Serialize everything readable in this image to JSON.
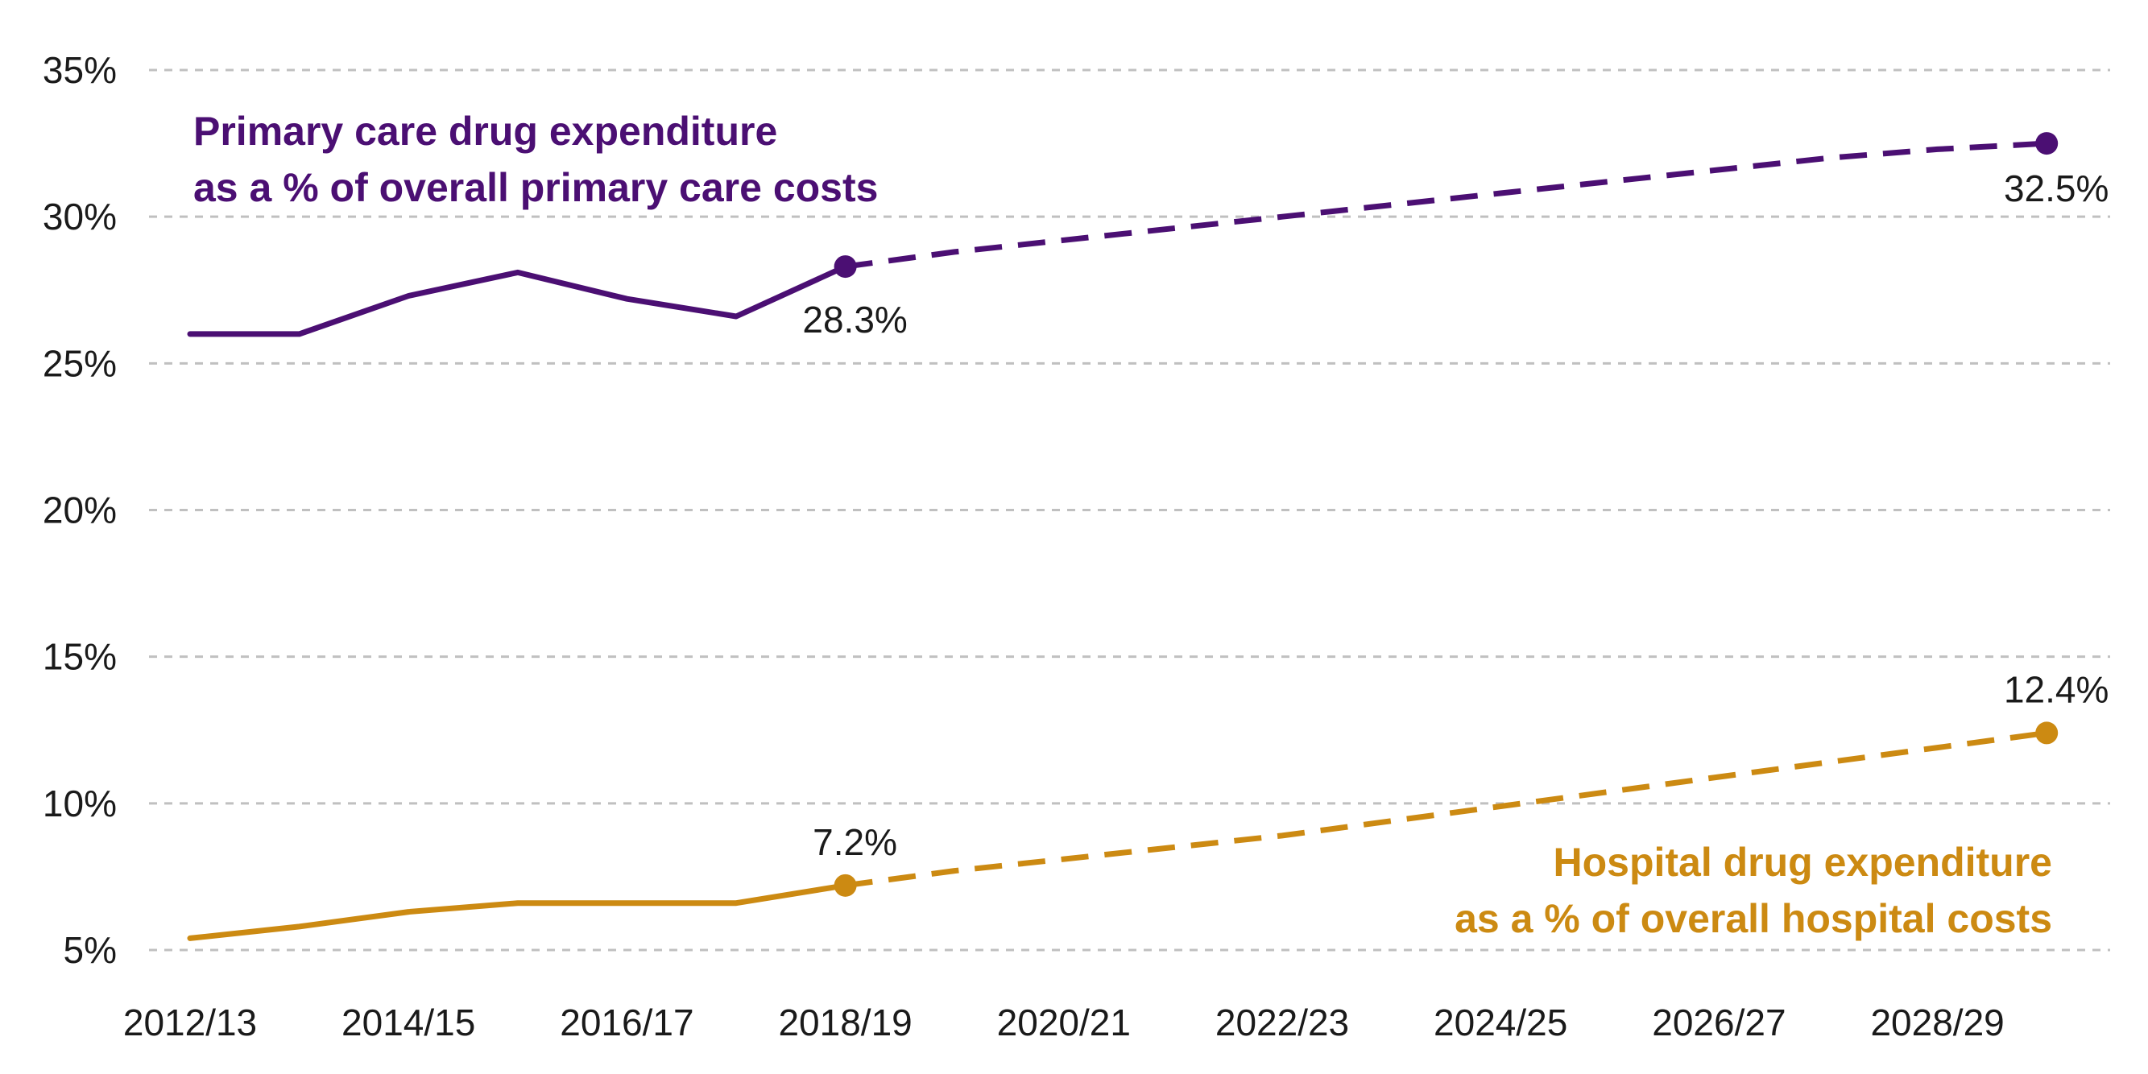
{
  "chart_data": {
    "type": "line",
    "categories": [
      "2012/13",
      "2013/14",
      "2014/15",
      "2015/16",
      "2016/17",
      "2017/18",
      "2018/19",
      "2019/20",
      "2020/21",
      "2021/22",
      "2022/23",
      "2023/24",
      "2024/25",
      "2025/26",
      "2026/27",
      "2027/28",
      "2028/29",
      "2029/30"
    ],
    "x_tick_labels": [
      "2012/13",
      "2014/15",
      "2016/17",
      "2018/19",
      "2020/21",
      "2022/23",
      "2024/25",
      "2026/27",
      "2028/29"
    ],
    "y_ticks": [
      "5%",
      "10%",
      "15%",
      "20%",
      "25%",
      "30%",
      "35%"
    ],
    "ylim": [
      5,
      35
    ],
    "grid": true,
    "title": "",
    "xlabel": "",
    "ylabel": "",
    "series": [
      {
        "key": "primary",
        "name_lines": [
          "Primary care drug expenditure",
          "as a % of overall primary care costs"
        ],
        "color": "#4b0f73",
        "actual": [
          [
            0,
            26.0
          ],
          [
            1,
            26.0
          ],
          [
            2,
            27.3
          ],
          [
            3,
            28.1
          ],
          [
            4,
            27.2
          ],
          [
            5,
            26.6
          ],
          [
            6,
            28.3
          ]
        ],
        "projected": [
          [
            6,
            28.3
          ],
          [
            7,
            28.8
          ],
          [
            8,
            29.2
          ],
          [
            9,
            29.6
          ],
          [
            10,
            30.0
          ],
          [
            11,
            30.4
          ],
          [
            12,
            30.8
          ],
          [
            13,
            31.2
          ],
          [
            14,
            31.6
          ],
          [
            15,
            32.0
          ],
          [
            16,
            32.3
          ],
          [
            17,
            32.5
          ]
        ],
        "labeled_points": [
          {
            "index": 6,
            "value": 28.3,
            "text": "28.3%"
          },
          {
            "index": 17,
            "value": 32.5,
            "text": "32.5%"
          }
        ]
      },
      {
        "key": "hospital",
        "name_lines": [
          "Hospital drug expenditure",
          "as a % of overall hospital costs"
        ],
        "color": "#cc8a12",
        "actual": [
          [
            0,
            5.4
          ],
          [
            1,
            5.8
          ],
          [
            2,
            6.3
          ],
          [
            3,
            6.6
          ],
          [
            4,
            6.6
          ],
          [
            5,
            6.6
          ],
          [
            6,
            7.2
          ]
        ],
        "projected": [
          [
            6,
            7.2
          ],
          [
            7,
            7.7
          ],
          [
            8,
            8.1
          ],
          [
            9,
            8.5
          ],
          [
            10,
            8.9
          ],
          [
            11,
            9.4
          ],
          [
            12,
            9.9
          ],
          [
            13,
            10.4
          ],
          [
            14,
            10.9
          ],
          [
            15,
            11.4
          ],
          [
            16,
            11.9
          ],
          [
            17,
            12.4
          ]
        ],
        "labeled_points": [
          {
            "index": 6,
            "value": 7.2,
            "text": "7.2%"
          },
          {
            "index": 17,
            "value": 12.4,
            "text": "12.4%"
          }
        ]
      }
    ]
  }
}
